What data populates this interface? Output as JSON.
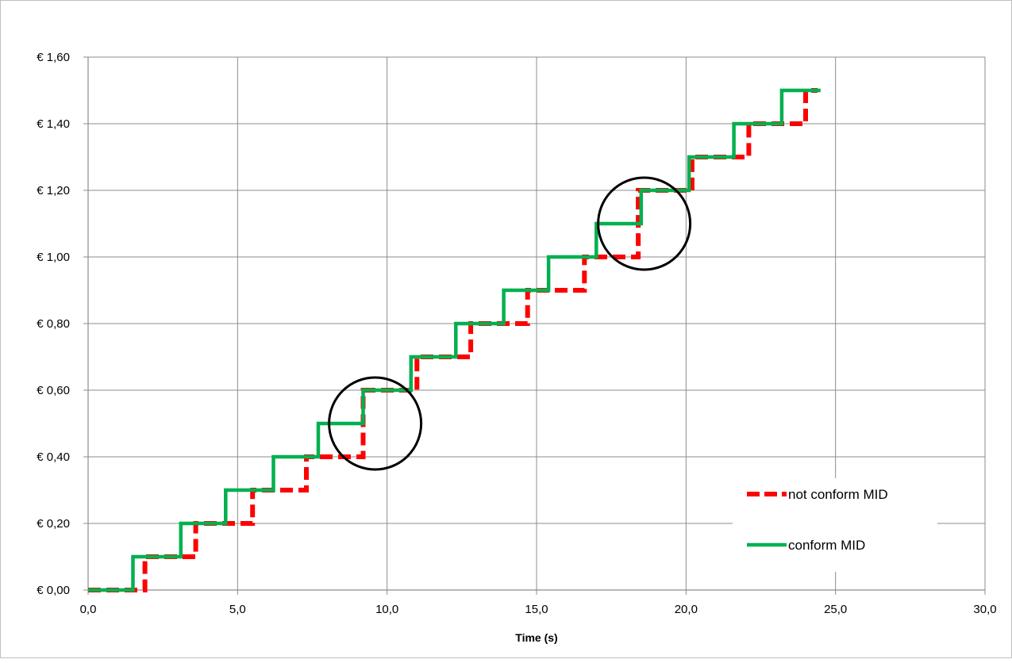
{
  "chart_data": {
    "type": "line",
    "title": "",
    "xlabel": "Time (s)",
    "ylabel": "",
    "xlim": [
      0,
      30
    ],
    "ylim": [
      0,
      1.6
    ],
    "x_ticks": [
      0,
      5,
      10,
      15,
      20,
      25,
      30
    ],
    "x_tick_labels": [
      "0,0",
      "5,0",
      "10,0",
      "15,0",
      "20,0",
      "25,0",
      "30,0"
    ],
    "y_ticks": [
      0,
      0.2,
      0.4,
      0.6,
      0.8,
      1.0,
      1.2,
      1.4,
      1.6
    ],
    "y_tick_labels": [
      "€ 0,00",
      "€ 0,20",
      "€ 0,40",
      "€ 0,60",
      "€ 0,80",
      "€ 1,00",
      "€ 1,20",
      "€ 1,40",
      "€ 1,60"
    ],
    "grid": true,
    "legend_position": "bottom-right",
    "series": [
      {
        "name": "not conform MID",
        "color": "#ff0000",
        "style": "dashed",
        "points": [
          [
            0,
            0
          ],
          [
            1.9,
            0
          ],
          [
            1.9,
            0.1
          ],
          [
            3.6,
            0.1
          ],
          [
            3.6,
            0.2
          ],
          [
            5.5,
            0.2
          ],
          [
            5.5,
            0.3
          ],
          [
            7.3,
            0.3
          ],
          [
            7.3,
            0.4
          ],
          [
            9.2,
            0.4
          ],
          [
            9.2,
            0.6
          ],
          [
            11.0,
            0.6
          ],
          [
            11.0,
            0.7
          ],
          [
            12.8,
            0.7
          ],
          [
            12.8,
            0.8
          ],
          [
            14.7,
            0.8
          ],
          [
            14.7,
            0.9
          ],
          [
            16.6,
            0.9
          ],
          [
            16.6,
            1.0
          ],
          [
            18.4,
            1.0
          ],
          [
            18.4,
            1.2
          ],
          [
            20.2,
            1.2
          ],
          [
            20.2,
            1.3
          ],
          [
            22.1,
            1.3
          ],
          [
            22.1,
            1.4
          ],
          [
            24.0,
            1.4
          ],
          [
            24.0,
            1.5
          ],
          [
            24.4,
            1.5
          ]
        ]
      },
      {
        "name": "conform MID",
        "color": "#00b050",
        "style": "solid",
        "points": [
          [
            0,
            0
          ],
          [
            1.5,
            0
          ],
          [
            1.5,
            0.1
          ],
          [
            3.1,
            0.1
          ],
          [
            3.1,
            0.2
          ],
          [
            4.6,
            0.2
          ],
          [
            4.6,
            0.3
          ],
          [
            6.2,
            0.3
          ],
          [
            6.2,
            0.4
          ],
          [
            7.7,
            0.4
          ],
          [
            7.7,
            0.5
          ],
          [
            9.2,
            0.5
          ],
          [
            9.2,
            0.6
          ],
          [
            10.8,
            0.6
          ],
          [
            10.8,
            0.7
          ],
          [
            12.3,
            0.7
          ],
          [
            12.3,
            0.8
          ],
          [
            13.9,
            0.8
          ],
          [
            13.9,
            0.9
          ],
          [
            15.4,
            0.9
          ],
          [
            15.4,
            1.0
          ],
          [
            17.0,
            1.0
          ],
          [
            17.0,
            1.1
          ],
          [
            18.5,
            1.1
          ],
          [
            18.5,
            1.2
          ],
          [
            20.1,
            1.2
          ],
          [
            20.1,
            1.3
          ],
          [
            21.6,
            1.3
          ],
          [
            21.6,
            1.4
          ],
          [
            23.2,
            1.4
          ],
          [
            23.2,
            1.5
          ],
          [
            24.5,
            1.5
          ]
        ]
      }
    ],
    "annotations": [
      {
        "type": "circle",
        "cx": 9.6,
        "cy": 0.5
      },
      {
        "type": "circle",
        "cx": 18.6,
        "cy": 1.1
      }
    ]
  }
}
